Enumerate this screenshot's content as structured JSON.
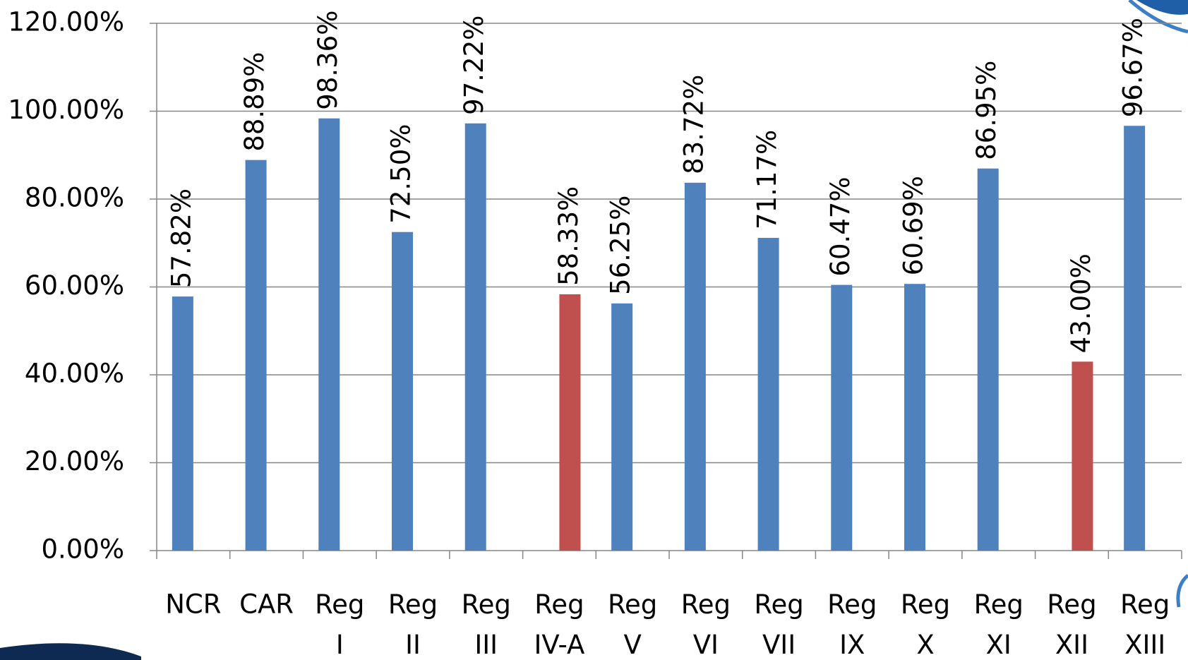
{
  "chart_data": {
    "type": "bar",
    "categories": [
      "NCR",
      "CAR",
      "Reg I",
      "Reg II",
      "Reg III",
      "Reg IV-A",
      "Reg V",
      "Reg VI",
      "Reg VII",
      "Reg IX",
      "Reg X",
      "Reg XI",
      "Reg XII",
      "Reg XIII"
    ],
    "series": [
      {
        "color": "#4f81bd",
        "values": [
          57.82,
          88.89,
          98.36,
          72.5,
          97.22,
          null,
          56.25,
          83.72,
          71.17,
          60.47,
          60.69,
          86.95,
          null,
          96.67
        ],
        "value_labels": [
          "57.82%",
          "88.89%",
          "98.36%",
          "72.50%",
          "97.22%",
          null,
          "56.25%",
          "83.72%",
          "71.17%",
          "60.47%",
          "60.69%",
          "86.95%",
          null,
          "96.67%"
        ]
      },
      {
        "color": "#c0504d",
        "values": [
          null,
          null,
          null,
          null,
          null,
          58.33,
          null,
          null,
          null,
          null,
          null,
          null,
          43.0,
          null
        ],
        "value_labels": [
          null,
          null,
          null,
          null,
          null,
          "58.33%",
          null,
          null,
          null,
          null,
          null,
          null,
          "43.00%",
          null
        ]
      }
    ],
    "ylim": [
      0,
      120
    ],
    "yticks": [
      {
        "value": 0,
        "label": "0.00%"
      },
      {
        "value": 20,
        "label": "20.00%"
      },
      {
        "value": 40,
        "label": "40.00%"
      },
      {
        "value": 60,
        "label": "60.00%"
      },
      {
        "value": 80,
        "label": "80.00%"
      },
      {
        "value": 100,
        "label": "100.00%"
      },
      {
        "value": 120,
        "label": "120.00%"
      }
    ],
    "grid": true
  }
}
